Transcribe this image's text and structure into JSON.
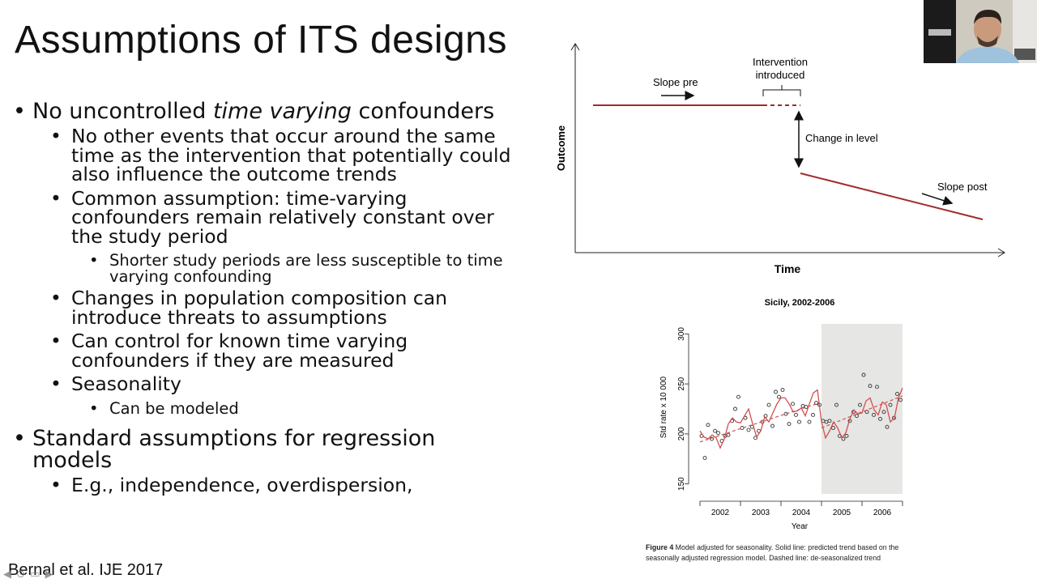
{
  "slide": {
    "title": "Assumptions of ITS designs",
    "citation": "Bernal et al. IJE 2017",
    "bullets": {
      "b1": {
        "pre": "No uncontrolled ",
        "italic": "time varying",
        "post": " confounders",
        "sub1": "No other events that occur around the same time as the intervention that potentially could also influence the outcome trends",
        "sub1_lines": [
          "No other events that occur around the same",
          "time as the intervention that potentially could",
          "also influence the outcome trends"
        ],
        "sub2_lines": [
          "Common assumption: time-varying",
          "confounders remain relatively constant over",
          "the study period"
        ],
        "sub2_1_lines": [
          "Shorter study periods are less susceptible to time",
          "varying confounding"
        ],
        "sub3_lines": [
          "Changes in population composition can",
          "introduce threats to assumptions"
        ],
        "sub4_lines": [
          "Can control for known time varying",
          "confounders if they are measured"
        ],
        "sub5": "Seasonality",
        "sub5_1": "Can be modeled"
      },
      "b2_lines": [
        "Standard assumptions for regression",
        "models"
      ],
      "b2_sub1": "E.g., independence, overdispersion,"
    }
  },
  "diagram": {
    "ylabel": "Outcome",
    "xlabel": "Time",
    "slope_pre": "Slope pre",
    "intervention_lines": [
      "Intervention",
      "introduced"
    ],
    "change_in_level": "Change in level",
    "slope_post": "Slope post",
    "line_color": "#a32a2a"
  },
  "chart_data": {
    "type": "scatter",
    "title": "Sicily, 2002-2006",
    "xlabel": "Year",
    "ylabel": "Std rate x 10 000",
    "x_ticks": [
      "2002",
      "2003",
      "2004",
      "2005",
      "2006"
    ],
    "y_ticks": [
      150,
      200,
      250,
      300
    ],
    "ylim": [
      140,
      310
    ],
    "xlim": [
      2002,
      2007
    ],
    "intervention_start": 2005,
    "shaded_period": [
      2005,
      2007
    ],
    "series": [
      {
        "name": "",
        "kind": "points",
        "x": [
          2002.04,
          2002.12,
          2002.2,
          2002.29,
          2002.37,
          2002.45,
          2002.54,
          2002.62,
          2002.7,
          2002.79,
          2002.87,
          2002.95,
          2003.04,
          2003.12,
          2003.2,
          2003.29,
          2003.37,
          2003.45,
          2003.54,
          2003.62,
          2003.7,
          2003.79,
          2003.87,
          2003.95,
          2004.04,
          2004.12,
          2004.2,
          2004.29,
          2004.37,
          2004.45,
          2004.54,
          2004.62,
          2004.7,
          2004.79,
          2004.87,
          2004.95,
          2005.04,
          2005.12,
          2005.2,
          2005.29,
          2005.37,
          2005.45,
          2005.54,
          2005.62,
          2005.7,
          2005.79,
          2005.87,
          2005.95,
          2006.04,
          2006.12,
          2006.2,
          2006.29,
          2006.37,
          2006.45,
          2006.54,
          2006.62,
          2006.7,
          2006.79,
          2006.87,
          2006.95
        ],
        "y": [
          198,
          176,
          209,
          195,
          203,
          201,
          193,
          198,
          199,
          213,
          225,
          237,
          206,
          216,
          204,
          207,
          196,
          203,
          212,
          218,
          229,
          208,
          242,
          237,
          244,
          220,
          210,
          230,
          219,
          212,
          228,
          227,
          212,
          219,
          231,
          229,
          213,
          212,
          213,
          206,
          229,
          198,
          195,
          198,
          213,
          222,
          218,
          229,
          259,
          222,
          248,
          219,
          247,
          215,
          222,
          207,
          229,
          216,
          240,
          234
        ]
      },
      {
        "name": "",
        "kind": "solid",
        "x": [
          2002.0,
          2002.1,
          2002.2,
          2002.3,
          2002.4,
          2002.5,
          2002.6,
          2002.7,
          2002.8,
          2002.9,
          2003.0,
          2003.1,
          2003.2,
          2003.3,
          2003.4,
          2003.5,
          2003.6,
          2003.7,
          2003.8,
          2003.9,
          2004.0,
          2004.1,
          2004.2,
          2004.3,
          2004.4,
          2004.5,
          2004.6,
          2004.7,
          2004.8,
          2004.9,
          2005.0,
          2005.1,
          2005.2,
          2005.3,
          2005.4,
          2005.5,
          2005.6,
          2005.7,
          2005.8,
          2005.9,
          2006.0,
          2006.1,
          2006.2,
          2006.3,
          2006.4,
          2006.5,
          2006.6,
          2006.7,
          2006.8,
          2006.9,
          2007.0
        ],
        "y": [
          203,
          197,
          195,
          199,
          196,
          186,
          195,
          210,
          216,
          212,
          211,
          218,
          225,
          210,
          197,
          203,
          217,
          212,
          221,
          230,
          236,
          236,
          230,
          222,
          223,
          226,
          218,
          230,
          241,
          244,
          212,
          196,
          203,
          212,
          206,
          196,
          201,
          215,
          224,
          220,
          221,
          233,
          236,
          224,
          219,
          232,
          229,
          212,
          216,
          236,
          246
        ]
      },
      {
        "name": "",
        "kind": "dashed",
        "x": [
          2002.0,
          2004.95,
          2005.0,
          2007.0
        ],
        "y": [
          192,
          231,
          206,
          238
        ]
      }
    ]
  },
  "figure_caption": {
    "label": "Figure 4",
    "text": " Model adjusted for seasonality. Solid line: predicted trend based on the seasonally adjusted regression model. Dashed line: de-seasonalized trend"
  },
  "colors": {
    "points": "#333333",
    "trend": "#d05050",
    "shade": "#e6e6e4"
  }
}
